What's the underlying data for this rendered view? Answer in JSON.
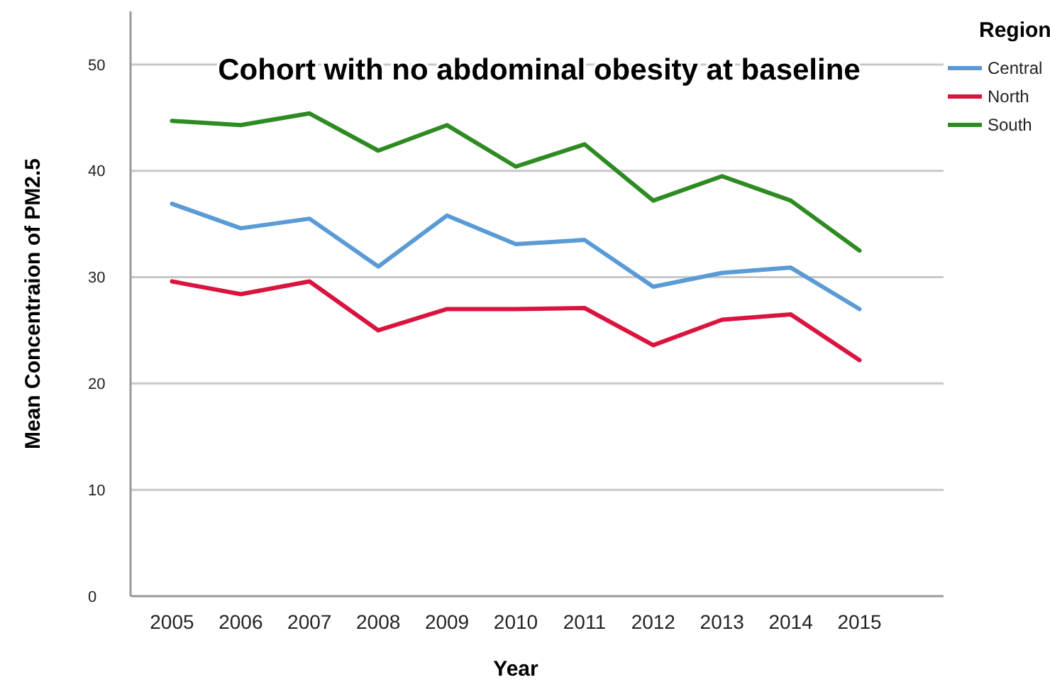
{
  "chart_data": {
    "type": "line",
    "title": "Cohort with no abdominal obesity at baseline",
    "xlabel": "Year",
    "ylabel": "Mean Concentraion of PM2.5",
    "legend_title": "Region",
    "categories": [
      "2005",
      "2006",
      "2007",
      "2008",
      "2009",
      "2010",
      "2011",
      "2012",
      "2013",
      "2014",
      "2015"
    ],
    "series": [
      {
        "name": "Central",
        "color": "#5b9bd5",
        "values": [
          36.9,
          34.6,
          35.5,
          31.0,
          35.8,
          33.1,
          33.5,
          29.1,
          30.4,
          30.9,
          27.0
        ]
      },
      {
        "name": "North",
        "color": "#d9143f",
        "values": [
          29.6,
          28.4,
          29.6,
          25.0,
          27.0,
          27.0,
          27.1,
          23.6,
          26.0,
          26.5,
          22.2
        ]
      },
      {
        "name": "South",
        "color": "#2e8b22",
        "values": [
          44.7,
          44.3,
          45.4,
          41.9,
          44.3,
          40.4,
          42.5,
          37.2,
          39.5,
          37.2,
          32.5
        ]
      }
    ],
    "ylim": [
      0,
      55
    ],
    "yticks": [
      0,
      10,
      20,
      30,
      40,
      50
    ],
    "grid": "y",
    "legend": "top right",
    "line_style": "solid",
    "marker": "none"
  }
}
